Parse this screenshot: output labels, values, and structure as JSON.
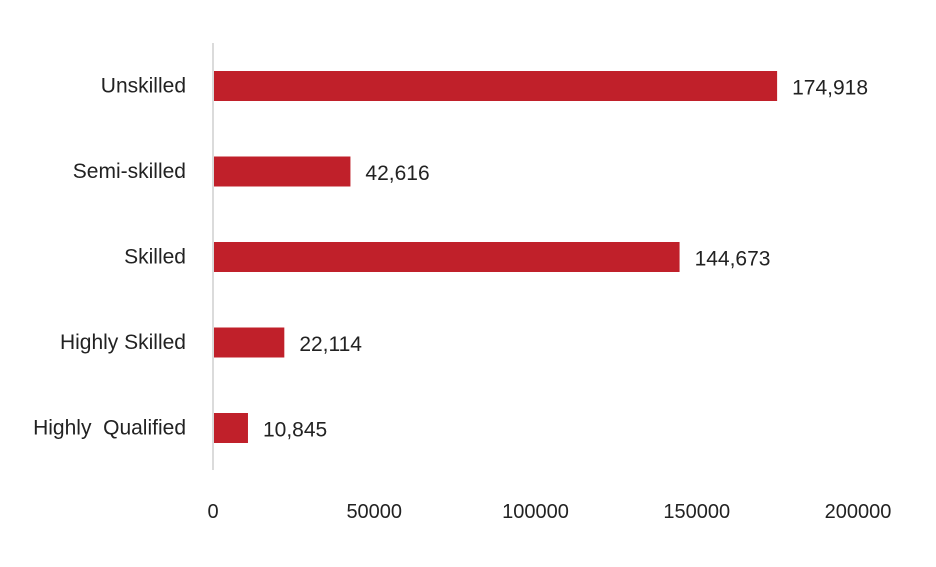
{
  "chart_data": {
    "type": "bar",
    "orientation": "horizontal",
    "categories": [
      "Unskilled",
      "Semi-skilled",
      "Skilled",
      "Highly Skilled",
      "Highly  Qualified"
    ],
    "values": [
      174918,
      42616,
      144673,
      22114,
      10845
    ],
    "value_labels": [
      "174,918",
      "42,616",
      "144,673",
      "22,114",
      "10,845"
    ],
    "x_ticks": [
      "0",
      "50000",
      "100000",
      "150000",
      "200000"
    ],
    "xlim": [
      0,
      200000
    ],
    "title": "",
    "xlabel": "",
    "ylabel": "",
    "grid": false,
    "legend": "none",
    "bar_color": "#c0202a",
    "axis_color": "#cfcfcf"
  }
}
